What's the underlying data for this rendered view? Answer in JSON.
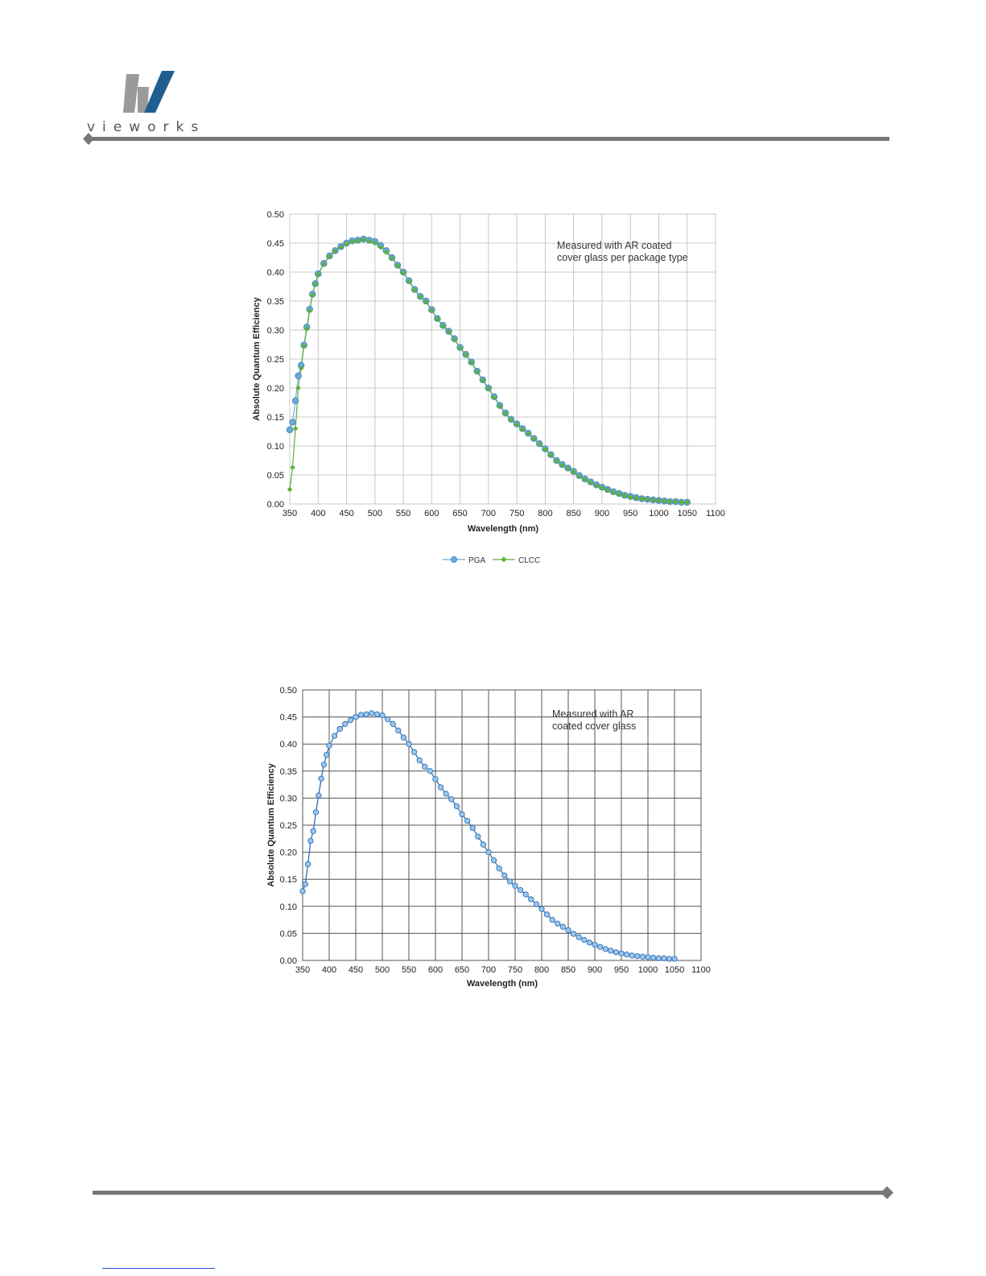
{
  "header": {
    "logo_text": "vieworks",
    "colors": {
      "logo_gray": "#9a9a9a",
      "logo_blue": "#1f5f8f",
      "rule": "#777777"
    }
  },
  "chart_data": [
    {
      "type": "scatter",
      "xlabel": "Wavelength (nm)",
      "ylabel": "Absolute Quantum Efficiency",
      "xlim": [
        350,
        1100
      ],
      "ylim": [
        0,
        0.5
      ],
      "xticks": [
        350,
        400,
        450,
        500,
        550,
        600,
        650,
        700,
        750,
        800,
        850,
        900,
        950,
        1000,
        1050,
        1100
      ],
      "yticks": [
        0,
        0.05,
        0.1,
        0.15,
        0.2,
        0.25,
        0.3,
        0.35,
        0.4,
        0.45,
        0.5
      ],
      "grid": true,
      "annotation": [
        "Measured with AR coated",
        "cover glass per package type"
      ],
      "legend_position": "bottom",
      "series": [
        {
          "name": "PGA",
          "color": "#6aa9d8",
          "marker": "circle",
          "x": [
            350,
            355,
            360,
            365,
            370,
            375,
            380,
            385,
            390,
            395,
            400,
            410,
            420,
            430,
            440,
            450,
            460,
            470,
            480,
            490,
            500,
            510,
            520,
            530,
            540,
            550,
            560,
            570,
            580,
            590,
            600,
            610,
            620,
            630,
            640,
            650,
            660,
            670,
            680,
            690,
            700,
            710,
            720,
            730,
            740,
            750,
            760,
            770,
            780,
            790,
            800,
            810,
            820,
            830,
            840,
            850,
            860,
            870,
            880,
            890,
            900,
            910,
            920,
            930,
            940,
            950,
            960,
            970,
            980,
            990,
            1000,
            1010,
            1020,
            1030,
            1040,
            1050
          ],
          "y": [
            0.128,
            0.141,
            0.178,
            0.221,
            0.239,
            0.274,
            0.305,
            0.336,
            0.362,
            0.38,
            0.397,
            0.415,
            0.428,
            0.437,
            0.444,
            0.45,
            0.454,
            0.455,
            0.457,
            0.455,
            0.453,
            0.446,
            0.437,
            0.425,
            0.412,
            0.4,
            0.385,
            0.37,
            0.358,
            0.35,
            0.335,
            0.32,
            0.308,
            0.298,
            0.285,
            0.27,
            0.258,
            0.245,
            0.229,
            0.214,
            0.2,
            0.185,
            0.17,
            0.157,
            0.146,
            0.138,
            0.13,
            0.122,
            0.113,
            0.104,
            0.095,
            0.085,
            0.075,
            0.068,
            0.062,
            0.056,
            0.049,
            0.043,
            0.038,
            0.033,
            0.029,
            0.025,
            0.021,
            0.018,
            0.015,
            0.013,
            0.011,
            0.009,
            0.008,
            0.007,
            0.006,
            0.005,
            0.004,
            0.004,
            0.003,
            0.003
          ]
        },
        {
          "name": "CLCC",
          "color": "#5cb23a",
          "marker": "diamond",
          "x": [
            350,
            355,
            360,
            365,
            370,
            375,
            380,
            385,
            390,
            395,
            400,
            410,
            420,
            430,
            440,
            450,
            460,
            470,
            480,
            490,
            500,
            510,
            520,
            530,
            540,
            550,
            560,
            570,
            580,
            590,
            600,
            610,
            620,
            630,
            640,
            650,
            660,
            670,
            680,
            690,
            700,
            710,
            720,
            730,
            740,
            750,
            760,
            770,
            780,
            790,
            800,
            810,
            820,
            830,
            840,
            850,
            860,
            870,
            880,
            890,
            900,
            910,
            920,
            930,
            940,
            950,
            960,
            970,
            980,
            990,
            1000,
            1010,
            1020,
            1030,
            1040,
            1050
          ],
          "y": [
            0.025,
            0.063,
            0.13,
            0.2,
            0.234,
            0.272,
            0.302,
            0.333,
            0.36,
            0.379,
            0.396,
            0.414,
            0.427,
            0.436,
            0.443,
            0.449,
            0.452,
            0.454,
            0.456,
            0.453,
            0.45,
            0.443,
            0.434,
            0.424,
            0.411,
            0.399,
            0.384,
            0.369,
            0.357,
            0.349,
            0.334,
            0.319,
            0.307,
            0.297,
            0.284,
            0.269,
            0.257,
            0.244,
            0.228,
            0.213,
            0.199,
            0.184,
            0.169,
            0.156,
            0.145,
            0.137,
            0.129,
            0.121,
            0.112,
            0.103,
            0.094,
            0.084,
            0.074,
            0.067,
            0.061,
            0.055,
            0.048,
            0.042,
            0.037,
            0.032,
            0.028,
            0.024,
            0.02,
            0.017,
            0.014,
            0.012,
            0.01,
            0.009,
            0.008,
            0.007,
            0.006,
            0.005,
            0.004,
            0.004,
            0.003,
            0.003
          ]
        }
      ]
    },
    {
      "type": "scatter",
      "xlabel": "Wavelength  (nm)",
      "ylabel": "Absolute  Quantum  Efficiency",
      "xlim": [
        350,
        1100
      ],
      "ylim": [
        0,
        0.5
      ],
      "xticks": [
        350,
        400,
        450,
        500,
        550,
        600,
        650,
        700,
        750,
        800,
        850,
        900,
        950,
        1000,
        1050,
        1100
      ],
      "yticks": [
        0,
        0.05,
        0.1,
        0.15,
        0.2,
        0.25,
        0.3,
        0.35,
        0.4,
        0.45,
        0.5
      ],
      "grid": true,
      "annotation": [
        "Measured with AR",
        "coated cover glass"
      ],
      "series": [
        {
          "color": "#2f6fb7",
          "marker": "circle",
          "x": [
            350,
            355,
            360,
            365,
            370,
            375,
            380,
            385,
            390,
            395,
            400,
            410,
            420,
            430,
            440,
            450,
            460,
            470,
            480,
            490,
            500,
            510,
            520,
            530,
            540,
            550,
            560,
            570,
            580,
            590,
            600,
            610,
            620,
            630,
            640,
            650,
            660,
            670,
            680,
            690,
            700,
            710,
            720,
            730,
            740,
            750,
            760,
            770,
            780,
            790,
            800,
            810,
            820,
            830,
            840,
            850,
            860,
            870,
            880,
            890,
            900,
            910,
            920,
            930,
            940,
            950,
            960,
            970,
            980,
            990,
            1000,
            1010,
            1020,
            1030,
            1040,
            1050
          ],
          "y": [
            0.128,
            0.141,
            0.178,
            0.221,
            0.239,
            0.274,
            0.305,
            0.336,
            0.362,
            0.38,
            0.397,
            0.415,
            0.428,
            0.437,
            0.444,
            0.45,
            0.454,
            0.455,
            0.457,
            0.455,
            0.453,
            0.446,
            0.437,
            0.425,
            0.412,
            0.4,
            0.385,
            0.37,
            0.358,
            0.35,
            0.335,
            0.32,
            0.308,
            0.298,
            0.285,
            0.27,
            0.258,
            0.245,
            0.229,
            0.214,
            0.2,
            0.185,
            0.17,
            0.157,
            0.146,
            0.138,
            0.13,
            0.122,
            0.113,
            0.104,
            0.095,
            0.085,
            0.075,
            0.068,
            0.062,
            0.056,
            0.049,
            0.043,
            0.038,
            0.033,
            0.029,
            0.025,
            0.021,
            0.018,
            0.015,
            0.013,
            0.011,
            0.009,
            0.008,
            0.007,
            0.006,
            0.005,
            0.004,
            0.004,
            0.003,
            0.003
          ]
        }
      ]
    }
  ]
}
